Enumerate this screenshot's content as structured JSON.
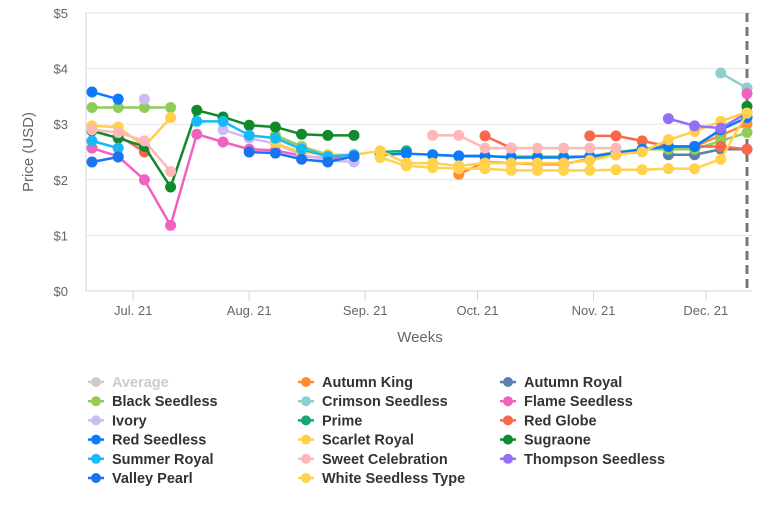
{
  "chart_data": {
    "type": "line",
    "ylabel": "Price (USD)",
    "xlabel": "Weeks",
    "ylim": [
      0,
      5
    ],
    "yticks": [
      "$0",
      "$1",
      "$2",
      "$3",
      "$4",
      "$5"
    ],
    "x_start": "2021-06-20",
    "x_interval_days": 7,
    "xticks": [
      {
        "label": "Jul. 21",
        "date": "2021-07-01"
      },
      {
        "label": "Aug. 21",
        "date": "2021-08-01"
      },
      {
        "label": "Sep. 21",
        "date": "2021-09-01"
      },
      {
        "label": "Oct. 21",
        "date": "2021-10-01"
      },
      {
        "label": "Nov. 21",
        "date": "2021-11-01"
      },
      {
        "label": "Dec. 21",
        "date": "2021-12-01"
      }
    ],
    "grid": true,
    "legend": "bottom",
    "marker_line_date": "2021-12-12",
    "series": [
      {
        "name": "Average",
        "color": "#cccccc",
        "hidden": true,
        "values": {}
      },
      {
        "name": "Autumn King",
        "color": "#ff8c2e",
        "values": {
          "14": 2.1,
          "15": 2.32,
          "16": 2.3,
          "17": 2.28,
          "18": 2.28,
          "19": 2.38,
          "20": 2.45,
          "21": 2.55,
          "22": 2.6,
          "23": 2.6,
          "24": 2.8,
          "25": 3.0
        }
      },
      {
        "name": "Autumn Royal",
        "color": "#5b7fb0",
        "values": {
          "22": 2.45,
          "23": 2.45,
          "24": 2.55,
          "25": 2.55
        }
      },
      {
        "name": "Black Seedless",
        "color": "#8fcc5a",
        "values": {
          "0": 3.3,
          "1": 3.3,
          "2": 3.3,
          "3": 3.3,
          "7": 2.8,
          "8": 2.6,
          "9": 2.45,
          "10": 2.45,
          "13": 2.45,
          "14": 2.42,
          "15": 2.42,
          "16": 2.42,
          "17": 2.42,
          "18": 2.42,
          "19": 2.42,
          "20": 2.5,
          "21": 2.55,
          "22": 2.55,
          "23": 2.55,
          "24": 2.7,
          "25": 2.85
        }
      },
      {
        "name": "Crimson Seedless",
        "color": "#8ecfcc",
        "values": {
          "24": 3.92,
          "25": 3.65
        }
      },
      {
        "name": "Flame Seedless",
        "color": "#f062c0",
        "values": {
          "0": 2.57,
          "1": 2.42,
          "2": 2.0,
          "3": 1.18,
          "4": 2.82,
          "5": 2.68,
          "6": 2.55,
          "7": 2.53,
          "8": 2.43,
          "9": 2.38,
          "10": 2.4,
          "25": 3.55
        }
      },
      {
        "name": "Ivory",
        "color": "#ccbbf5",
        "values": {
          "2": 3.45,
          "5": 2.9,
          "6": 2.75,
          "7": 2.65,
          "8": 2.45,
          "9": 2.35,
          "10": 2.32
        }
      },
      {
        "name": "Prime",
        "color": "#13a87a",
        "values": {
          "11": 2.5,
          "12": 2.52
        }
      },
      {
        "name": "Red Globe",
        "color": "#f7684c",
        "values": {
          "1": 2.8,
          "2": 2.5,
          "15": 2.79,
          "16": 2.57,
          "19": 2.79,
          "20": 2.79,
          "21": 2.7,
          "22": 2.6,
          "23": 2.6,
          "24": 2.6,
          "25": 2.55
        }
      },
      {
        "name": "Red Seedless",
        "color": "#0a7bff",
        "values": {
          "0": 3.58,
          "1": 3.45,
          "11": 2.45,
          "12": 2.47,
          "13": 2.45,
          "14": 2.43,
          "15": 2.43,
          "16": 2.4,
          "17": 2.4,
          "18": 2.4,
          "19": 2.42,
          "20": 2.48,
          "21": 2.55,
          "22": 2.6,
          "23": 2.6,
          "24": 2.9,
          "25": 3.12
        }
      },
      {
        "name": "Scarlet Royal",
        "color": "#ffcf4d",
        "values": {
          "0": 2.97,
          "1": 2.95,
          "2": 2.6,
          "3": 3.12,
          "7": 2.65,
          "8": 2.5,
          "9": 2.45,
          "10": 2.45,
          "11": 2.52,
          "12": 2.3,
          "13": 2.3,
          "14": 2.25,
          "15": 2.3,
          "16": 2.3,
          "17": 2.3,
          "18": 2.3,
          "19": 2.35,
          "20": 2.45,
          "21": 2.5,
          "22": 2.72,
          "23": 2.87,
          "24": 3.05,
          "25": 3.22
        }
      },
      {
        "name": "Sugraone",
        "color": "#0f8a2c",
        "values": {
          "0": 2.88,
          "1": 2.75,
          "2": 2.6,
          "3": 1.87,
          "4": 3.25,
          "5": 3.13,
          "6": 2.98,
          "7": 2.95,
          "8": 2.82,
          "9": 2.8,
          "10": 2.8,
          "25": 3.32
        }
      },
      {
        "name": "Summer Royal",
        "color": "#18b9f5",
        "values": {
          "0": 2.7,
          "1": 2.57,
          "4": 3.05,
          "5": 3.05,
          "6": 2.8,
          "7": 2.75,
          "8": 2.55,
          "9": 2.42,
          "10": 2.45
        }
      },
      {
        "name": "Sweet Celebration",
        "color": "#ffb8b8",
        "values": {
          "0": 2.9,
          "1": 2.85,
          "2": 2.7,
          "3": 2.15,
          "13": 2.8,
          "14": 2.8,
          "15": 2.57,
          "16": 2.57,
          "17": 2.57,
          "18": 2.57,
          "19": 2.57,
          "20": 2.57
        }
      },
      {
        "name": "Thompson Seedless",
        "color": "#9370f5",
        "values": {
          "22": 3.1,
          "23": 2.97,
          "24": 2.93,
          "25": 3.2
        }
      },
      {
        "name": "Valley Pearl",
        "color": "#1a73f0",
        "values": {
          "0": 2.32,
          "1": 2.41,
          "6": 2.5,
          "7": 2.48,
          "8": 2.37,
          "9": 2.32,
          "10": 2.42
        }
      },
      {
        "name": "White Seedless Type",
        "color": "#ffd34d",
        "values": {
          "11": 2.4,
          "12": 2.25,
          "13": 2.22,
          "14": 2.2,
          "15": 2.2,
          "16": 2.17,
          "17": 2.17,
          "18": 2.17,
          "19": 2.17,
          "20": 2.18,
          "21": 2.18,
          "22": 2.2,
          "23": 2.2,
          "24": 2.37,
          "25": 3.2
        }
      }
    ]
  }
}
